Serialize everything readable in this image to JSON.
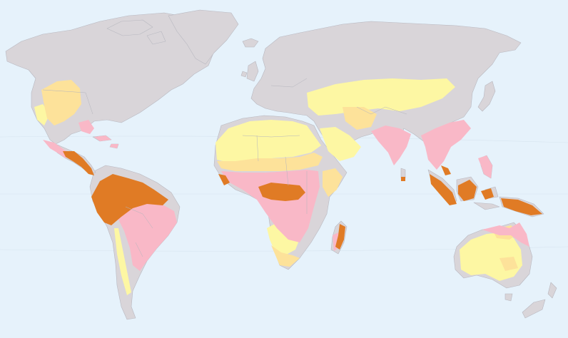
{
  "map": {
    "colors": {
      "ocean": "#e6f2fb",
      "land_other": "#d9d5d9",
      "zone_dry": "#fdf7a3",
      "zone_semi": "#fde29a",
      "zone_wet_dry": "#f9b8c7",
      "zone_rainforest": "#e07b25"
    }
  }
}
